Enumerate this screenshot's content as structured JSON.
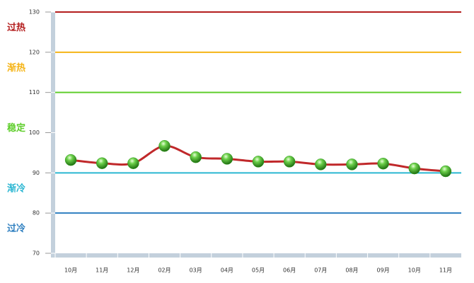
{
  "chart_data": {
    "type": "line",
    "categories": [
      "10月",
      "11月",
      "12月",
      "02月",
      "03月",
      "04月",
      "05月",
      "06月",
      "07月",
      "08月",
      "09月",
      "10月",
      "11月"
    ],
    "series": [
      {
        "color": "#c0282a",
        "values": [
          93.2,
          92.4,
          92.4,
          96.7,
          93.9,
          93.5,
          92.8,
          92.8,
          92.1,
          92.1,
          92.3,
          91.1,
          90.4
        ]
      }
    ],
    "marker_color": "#2e9a1c",
    "ylim": [
      70,
      130
    ],
    "yticks": [
      70,
      80,
      90,
      100,
      110,
      120,
      130
    ],
    "zones": [
      {
        "label": "过冷",
        "color": "#2e7fc0",
        "range": [
          70,
          80
        ]
      },
      {
        "label": "渐冷",
        "color": "#2ab6d2",
        "range": [
          80,
          90
        ]
      },
      {
        "label": "稳定",
        "color": "#5fce2c",
        "range": [
          90,
          110
        ]
      },
      {
        "label": "渐热",
        "color": "#f5b417",
        "range": [
          110,
          120
        ]
      },
      {
        "label": "过热",
        "color": "#b41e1e",
        "range": [
          120,
          130
        ]
      }
    ]
  }
}
